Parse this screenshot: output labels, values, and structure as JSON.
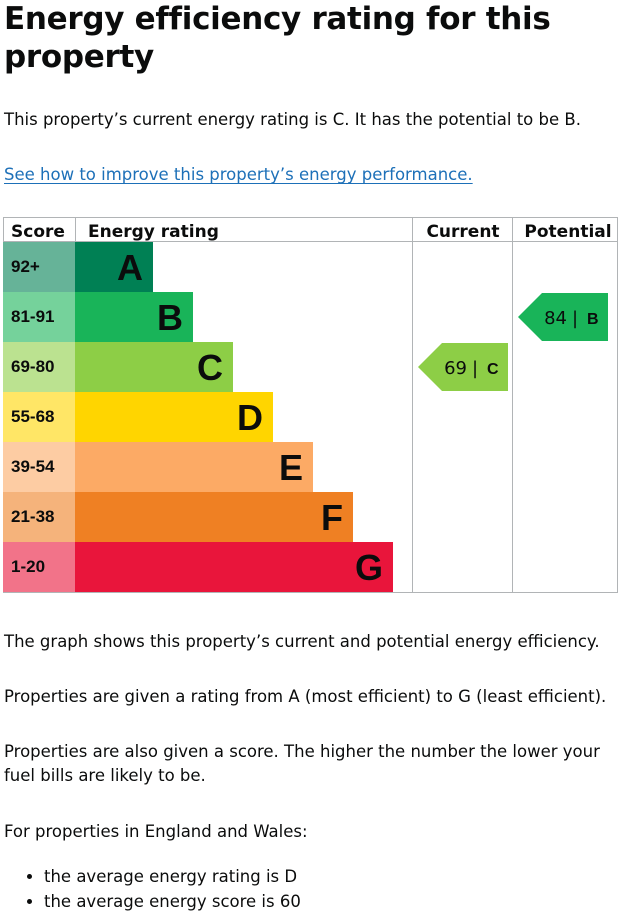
{
  "heading": "Energy efficiency rating for this property",
  "summary": "This property’s current energy rating is C. It has the potential to be B.",
  "improve_link": "See how to improve this property’s energy performance.",
  "table": {
    "headers": {
      "score": "Score",
      "rating": "Energy rating",
      "current": "Current",
      "potential": "Potential"
    },
    "bands": [
      {
        "range": "92+",
        "letter": "A",
        "color": "#008054",
        "score_bg": "#66b398"
      },
      {
        "range": "81-91",
        "letter": "B",
        "color": "#19b459",
        "score_bg": "#75d29b"
      },
      {
        "range": "69-80",
        "letter": "C",
        "color": "#8dce46",
        "score_bg": "#bbe290"
      },
      {
        "range": "55-68",
        "letter": "D",
        "color": "#ffd500",
        "score_bg": "#ffe666"
      },
      {
        "range": "39-54",
        "letter": "E",
        "color": "#fcaa65",
        "score_bg": "#fdcca3"
      },
      {
        "range": "21-38",
        "letter": "F",
        "color": "#ef8023",
        "score_bg": "#f5b37b"
      },
      {
        "range": "1-20",
        "letter": "G",
        "color": "#e9153b",
        "score_bg": "#f27389"
      }
    ],
    "current": {
      "score": "69",
      "letter": "C",
      "band_index": 2
    },
    "potential": {
      "score": "84",
      "letter": "B",
      "band_index": 1
    }
  },
  "graph_text": "The graph shows this property’s current and potential energy efficiency.",
  "rating_text": "Properties are given a rating from A (most efficient) to G (least efficient).",
  "score_text": "Properties are also given a score. The higher the number the lower your fuel bills are likely to be.",
  "region_text": "For properties in England and Wales:",
  "bullets": [
    "the average energy rating is D",
    "the average energy score is 60"
  ]
}
